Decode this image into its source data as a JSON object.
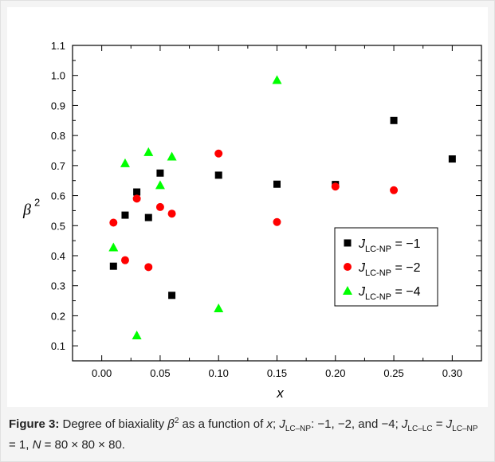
{
  "chart_data": {
    "type": "scatter",
    "xlabel": "x",
    "ylabel_base": "β",
    "ylabel_exp": "2",
    "xlim": [
      -0.025,
      0.325
    ],
    "ylim": [
      0.05,
      1.1
    ],
    "x_ticks": [
      "0.00",
      "0.05",
      "0.10",
      "0.15",
      "0.20",
      "0.25",
      "0.30"
    ],
    "x_tick_values": [
      0.0,
      0.05,
      0.1,
      0.15,
      0.2,
      0.25,
      0.3
    ],
    "y_ticks": [
      "0.1",
      "0.2",
      "0.3",
      "0.4",
      "0.5",
      "0.6",
      "0.7",
      "0.8",
      "0.9",
      "1.0",
      "1.1"
    ],
    "y_tick_values": [
      0.1,
      0.2,
      0.3,
      0.4,
      0.5,
      0.6,
      0.7,
      0.8,
      0.9,
      1.0,
      1.1
    ],
    "legend_placement": "lower-right",
    "series": [
      {
        "legend_label": "J",
        "legend_sub": "LC-NP",
        "legend_value": " = −1",
        "marker": "square",
        "color": "#000000",
        "points": [
          [
            0.01,
            0.365
          ],
          [
            0.02,
            0.535
          ],
          [
            0.03,
            0.612
          ],
          [
            0.04,
            0.527
          ],
          [
            0.05,
            0.675
          ],
          [
            0.06,
            0.268
          ],
          [
            0.1,
            0.668
          ],
          [
            0.15,
            0.638
          ],
          [
            0.2,
            0.637
          ],
          [
            0.25,
            0.85
          ],
          [
            0.3,
            0.722
          ]
        ]
      },
      {
        "legend_label": "J",
        "legend_sub": "LC-NP",
        "legend_value": " = −2",
        "marker": "circle",
        "color": "#ff0000",
        "points": [
          [
            0.01,
            0.51
          ],
          [
            0.02,
            0.385
          ],
          [
            0.03,
            0.59
          ],
          [
            0.04,
            0.362
          ],
          [
            0.05,
            0.562
          ],
          [
            0.06,
            0.54
          ],
          [
            0.1,
            0.74
          ],
          [
            0.15,
            0.512
          ],
          [
            0.2,
            0.63
          ],
          [
            0.25,
            0.618
          ]
        ]
      },
      {
        "legend_label": "J",
        "legend_sub": "LC-NP",
        "legend_value": " = −4",
        "marker": "triangle",
        "color": "#00ff00",
        "points": [
          [
            0.01,
            0.428
          ],
          [
            0.02,
            0.708
          ],
          [
            0.03,
            0.135
          ],
          [
            0.04,
            0.745
          ],
          [
            0.05,
            0.635
          ],
          [
            0.06,
            0.73
          ],
          [
            0.1,
            0.225
          ],
          [
            0.15,
            0.985
          ]
        ]
      }
    ]
  },
  "caption": {
    "label": "Figure 3:",
    "t1": " Degree of biaxiality ",
    "beta": "β",
    "sq": "2",
    "t2": " as a function of ",
    "x": "x",
    "t3": "; ",
    "j1": "J",
    "j1_sub": "LC–NP",
    "t4": ": −1, −2, and −4; ",
    "j2": "J",
    "j2_sub": "LC–LC",
    "t5": " = ",
    "j3": "J",
    "j3_sub": "LC–NP",
    "t6": " = 1, ",
    "n": "N",
    "t7": " = 80 × 80 × 80."
  }
}
